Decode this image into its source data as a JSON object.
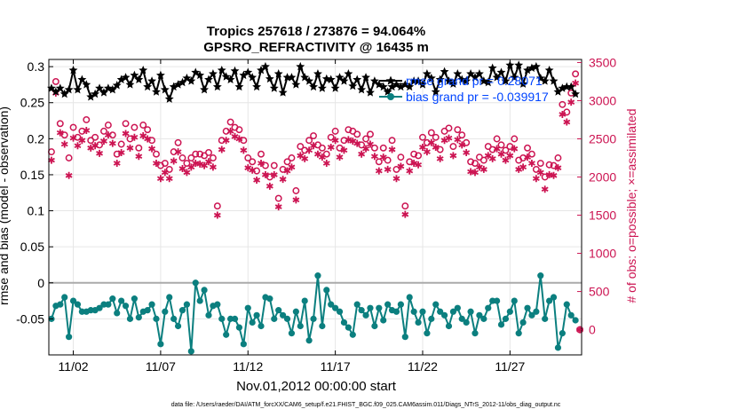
{
  "chart_data": {
    "type": "line",
    "title": "Tropics 257618 / 273876 = 94.064%",
    "subtitle": "GPSRO_REFRACTIVITY @ 16435 m",
    "xlabel": "Nov.01,2012 00:00:00 start",
    "ylabel": "rmse and bias (model - observation)",
    "ylabel_right": "# of obs: o=possible; ×=assimilated",
    "footer": "data file: /Users/raeder/DAI/ATM_forcXX/CAM6_setup/f.e21.FHIST_BGC.f09_025.CAM6assim.011/Diags_NTrS_2012-11/obs_diag_output.nc",
    "xlim": [
      0.6,
      31.1
    ],
    "ylim": [
      -0.1,
      0.31
    ],
    "ylim_right": [
      -330,
      3540
    ],
    "x_ticks": [
      2,
      7,
      12,
      17,
      22,
      27
    ],
    "x_tick_labels": [
      "11/02",
      "11/07",
      "11/12",
      "11/17",
      "11/22",
      "11/27"
    ],
    "y_ticks": [
      -0.05,
      0,
      0.05,
      0.1,
      0.15,
      0.2,
      0.25,
      0.3
    ],
    "y_tick_labels": [
      "-0.05",
      "0",
      "0.05",
      "0.1",
      "0.15",
      "0.2",
      "0.25",
      "0.3"
    ],
    "y2_ticks": [
      0,
      500,
      1000,
      1500,
      2000,
      2500,
      3000,
      3500
    ],
    "y2_tick_labels": [
      "0",
      "500",
      "1000",
      "1500",
      "2000",
      "2500",
      "3000",
      "3500"
    ],
    "legend": [
      {
        "label": "rmse grand pr = 0.28071",
        "color": "#000000"
      },
      {
        "label": "bias grand pr = -0.039917",
        "color": "#0b7f7f"
      }
    ],
    "legend_text_color": "#0044ff",
    "grid": true,
    "colors": {
      "rmse": "#000000",
      "bias": "#0b7f7f",
      "obs": "#cc1452",
      "zero_line": "#aaaaaa"
    },
    "x": [
      0.75,
      1.0,
      1.25,
      1.5,
      1.75,
      2.0,
      2.25,
      2.5,
      2.75,
      3.0,
      3.25,
      3.5,
      3.75,
      4.0,
      4.25,
      4.5,
      4.75,
      5.0,
      5.25,
      5.5,
      5.75,
      6.0,
      6.25,
      6.5,
      6.75,
      7.0,
      7.25,
      7.5,
      7.75,
      8.0,
      8.25,
      8.5,
      8.75,
      9.0,
      9.25,
      9.5,
      9.75,
      10.0,
      10.25,
      10.5,
      10.75,
      11.0,
      11.25,
      11.5,
      11.75,
      12.0,
      12.25,
      12.5,
      12.75,
      13.0,
      13.25,
      13.5,
      13.75,
      14.0,
      14.25,
      14.5,
      14.75,
      15.0,
      15.25,
      15.5,
      15.75,
      16.0,
      16.25,
      16.5,
      16.75,
      17.0,
      17.25,
      17.5,
      17.75,
      18.0,
      18.25,
      18.5,
      18.75,
      19.0,
      19.25,
      19.5,
      19.75,
      20.0,
      20.25,
      20.5,
      20.75,
      21.0,
      21.25,
      21.5,
      21.75,
      22.0,
      22.25,
      22.5,
      22.75,
      23.0,
      23.25,
      23.5,
      23.75,
      24.0,
      24.25,
      24.5,
      24.75,
      25.0,
      25.25,
      25.5,
      25.75,
      26.0,
      26.25,
      26.5,
      26.75,
      27.0,
      27.25,
      27.5,
      27.75,
      28.0,
      28.25,
      28.5,
      28.75,
      29.0,
      29.25,
      29.5,
      29.75,
      30.0,
      30.25,
      30.5,
      30.75
    ],
    "series": [
      {
        "name": "rmse",
        "marker": "filled-star",
        "values": [
          0.27,
          0.265,
          0.27,
          0.262,
          0.268,
          0.295,
          0.268,
          0.282,
          0.275,
          0.258,
          0.262,
          0.27,
          0.264,
          0.27,
          0.268,
          0.274,
          0.282,
          0.285,
          0.275,
          0.288,
          0.282,
          0.295,
          0.272,
          0.28,
          0.265,
          0.288,
          0.268,
          0.255,
          0.272,
          0.275,
          0.278,
          0.284,
          0.28,
          0.292,
          0.288,
          0.268,
          0.282,
          0.29,
          0.272,
          0.295,
          0.286,
          0.282,
          0.294,
          0.272,
          0.288,
          0.292,
          0.285,
          0.272,
          0.295,
          0.3,
          0.283,
          0.27,
          0.29,
          0.264,
          0.285,
          0.285,
          0.275,
          0.3,
          0.285,
          0.28,
          0.272,
          0.29,
          0.27,
          0.283,
          0.282,
          0.27,
          0.285,
          0.28,
          0.29,
          0.273,
          0.282,
          0.268,
          0.285,
          0.264,
          0.28,
          0.275,
          0.272,
          0.265,
          0.272,
          0.275,
          0.272,
          0.275,
          0.272,
          0.28,
          0.28,
          0.275,
          0.29,
          0.284,
          0.265,
          0.282,
          0.293,
          0.28,
          0.276,
          0.29,
          0.282,
          0.28,
          0.29,
          0.285,
          0.29,
          0.28,
          0.278,
          0.298,
          0.285,
          0.292,
          0.28,
          0.302,
          0.285,
          0.302,
          0.276,
          0.295,
          0.298,
          0.3,
          0.284,
          0.28,
          0.295,
          0.28,
          0.265,
          0.27,
          0.272,
          0.272,
          0.262
        ]
      },
      {
        "name": "bias",
        "marker": "filled-circle",
        "values": [
          -0.05,
          -0.032,
          -0.03,
          -0.02,
          -0.075,
          -0.025,
          -0.03,
          -0.04,
          -0.04,
          -0.038,
          -0.038,
          -0.035,
          -0.03,
          -0.03,
          -0.022,
          -0.042,
          -0.025,
          -0.032,
          -0.05,
          -0.022,
          -0.048,
          -0.04,
          -0.038,
          -0.03,
          -0.05,
          -0.085,
          -0.04,
          -0.02,
          -0.05,
          -0.06,
          -0.038,
          -0.03,
          -0.095,
          0.0,
          -0.025,
          -0.01,
          -0.045,
          -0.032,
          -0.03,
          -0.05,
          -0.072,
          -0.05,
          -0.05,
          -0.062,
          -0.085,
          -0.035,
          -0.055,
          -0.045,
          -0.06,
          -0.02,
          -0.022,
          -0.05,
          -0.038,
          -0.045,
          -0.05,
          -0.07,
          -0.04,
          -0.06,
          -0.025,
          -0.08,
          -0.05,
          0.01,
          -0.06,
          -0.01,
          -0.03,
          -0.035,
          -0.04,
          -0.055,
          -0.062,
          -0.072,
          -0.03,
          -0.038,
          -0.045,
          -0.035,
          -0.06,
          -0.035,
          -0.052,
          -0.03,
          -0.038,
          -0.04,
          -0.03,
          -0.075,
          -0.02,
          -0.04,
          -0.055,
          -0.04,
          -0.07,
          -0.05,
          -0.03,
          -0.04,
          -0.045,
          -0.06,
          -0.04,
          -0.035,
          -0.05,
          -0.055,
          -0.04,
          -0.07,
          -0.045,
          -0.05,
          -0.035,
          -0.025,
          -0.025,
          -0.058,
          -0.05,
          -0.04,
          -0.025,
          -0.07,
          -0.055,
          -0.035,
          -0.045,
          -0.04,
          0.01,
          -0.05,
          -0.025,
          -0.02,
          -0.09,
          -0.07,
          -0.03,
          -0.045,
          -0.052
        ]
      },
      {
        "name": "obs possible",
        "marker": "open-circle",
        "axis": "right",
        "values": [
          2330,
          3250,
          2700,
          2550,
          2250,
          2650,
          2520,
          2600,
          2750,
          2480,
          2520,
          2420,
          2600,
          2680,
          2550,
          2300,
          2430,
          2700,
          2500,
          2650,
          2380,
          2680,
          2620,
          2480,
          2300,
          2150,
          2180,
          2100,
          2330,
          2450,
          2250,
          2180,
          2250,
          2300,
          2300,
          2280,
          2320,
          2250,
          1620,
          2480,
          2600,
          2720,
          2650,
          2620,
          2480,
          2250,
          2200,
          2080,
          2300,
          2150,
          2000,
          2150,
          1720,
          2100,
          2200,
          2250,
          1820,
          2400,
          2350,
          2480,
          2540,
          2420,
          2380,
          2300,
          2520,
          2600,
          2380,
          2480,
          2620,
          2600,
          2560,
          2420,
          2500,
          2560,
          2380,
          2200,
          2380,
          2220,
          2480,
          2100,
          2260,
          1620,
          2200,
          2300,
          2280,
          2520,
          2450,
          2580,
          2520,
          2360,
          2600,
          2640,
          2400,
          2620,
          2550,
          2450,
          2200,
          2180,
          2260,
          2220,
          2400,
          2360,
          2500,
          2420,
          2350,
          2400,
          2500,
          2220,
          2250,
          2380,
          2300,
          2100,
          2180,
          2000,
          2160,
          2150,
          2250,
          2950,
          2850,
          3100,
          3350
        ]
      },
      {
        "name": "obs assimilated",
        "marker": "asterisk",
        "axis": "right",
        "values": [
          2220,
          3100,
          2580,
          2430,
          2020,
          2510,
          2410,
          2480,
          2610,
          2380,
          2410,
          2310,
          2470,
          2550,
          2440,
          2180,
          2320,
          2570,
          2380,
          2520,
          2270,
          2540,
          2500,
          2370,
          2180,
          1980,
          2060,
          1980,
          2210,
          2330,
          2110,
          2060,
          2130,
          2180,
          2170,
          2150,
          2200,
          2130,
          1500,
          2360,
          2480,
          2600,
          2530,
          2500,
          2350,
          2120,
          2090,
          1960,
          2180,
          2030,
          1880,
          2030,
          1610,
          1970,
          2080,
          2130,
          1700,
          2280,
          2240,
          2350,
          2410,
          2300,
          2260,
          2180,
          2390,
          2480,
          2260,
          2350,
          2490,
          2470,
          2440,
          2300,
          2370,
          2430,
          2270,
          2080,
          2260,
          2100,
          2360,
          1980,
          2140,
          1510,
          2080,
          2180,
          2160,
          2390,
          2330,
          2450,
          2390,
          2240,
          2480,
          2510,
          2280,
          2490,
          2420,
          2320,
          2070,
          2060,
          2130,
          2100,
          2280,
          2240,
          2370,
          2300,
          2220,
          2280,
          2370,
          2100,
          2130,
          2260,
          2180,
          1980,
          2060,
          1840,
          2030,
          2020,
          2120,
          2820,
          2720,
          2980,
          3230
        ]
      }
    ],
    "obs_endpoint": {
      "x": 31.0,
      "value": 0
    }
  }
}
